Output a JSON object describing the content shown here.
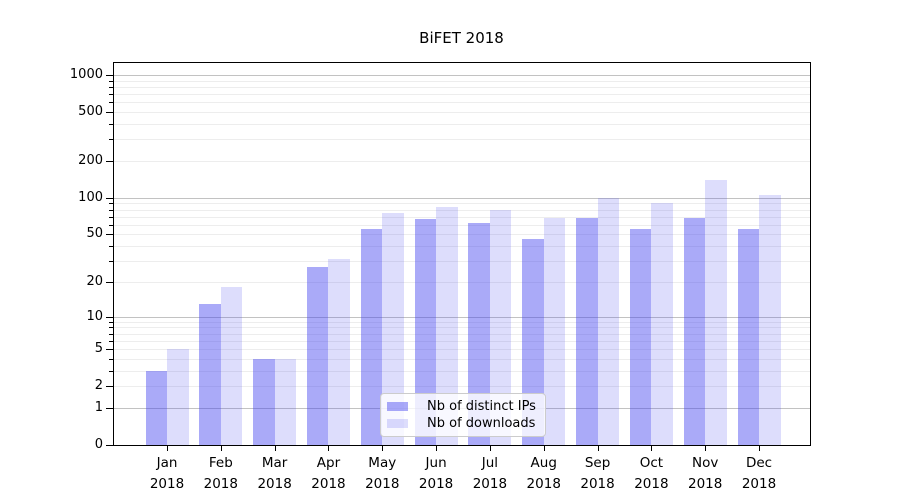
{
  "background_color": "#ffffff",
  "chart_data": {
    "type": "bar",
    "title": "BiFET 2018",
    "categories": [
      "Jan 2018",
      "Feb 2018",
      "Mar 2018",
      "Apr 2018",
      "May 2018",
      "Jun 2018",
      "Jul 2018",
      "Aug 2018",
      "Sep 2018",
      "Oct 2018",
      "Nov 2018",
      "Dec 2018"
    ],
    "month_labels": [
      "Jan",
      "Feb",
      "Mar",
      "Apr",
      "May",
      "Jun",
      "Jul",
      "Aug",
      "Sep",
      "Oct",
      "Nov",
      "Dec"
    ],
    "year_label": "2018",
    "series": [
      {
        "name": "Nb of distinct IPs",
        "color": "#4343f073",
        "values": [
          3,
          13,
          4,
          27,
          55,
          67,
          62,
          46,
          68,
          55,
          69,
          56
        ]
      },
      {
        "name": "Nb of downloads",
        "color": "#4343f02e",
        "values": [
          5,
          18,
          4,
          31,
          75,
          84,
          79,
          69,
          100,
          90,
          140,
          105
        ]
      }
    ],
    "y_axis": {
      "scale": "log1p",
      "tick_values": [
        0,
        1,
        2,
        5,
        10,
        20,
        50,
        100,
        200,
        500,
        1000
      ],
      "ylim": [
        0,
        1254
      ]
    },
    "grid": {
      "major_values": [
        1,
        10,
        100,
        1000
      ],
      "minor_decades": [
        1,
        10,
        100
      ]
    },
    "legend": {
      "position": "lower center"
    },
    "xlabel": "",
    "ylabel": ""
  }
}
